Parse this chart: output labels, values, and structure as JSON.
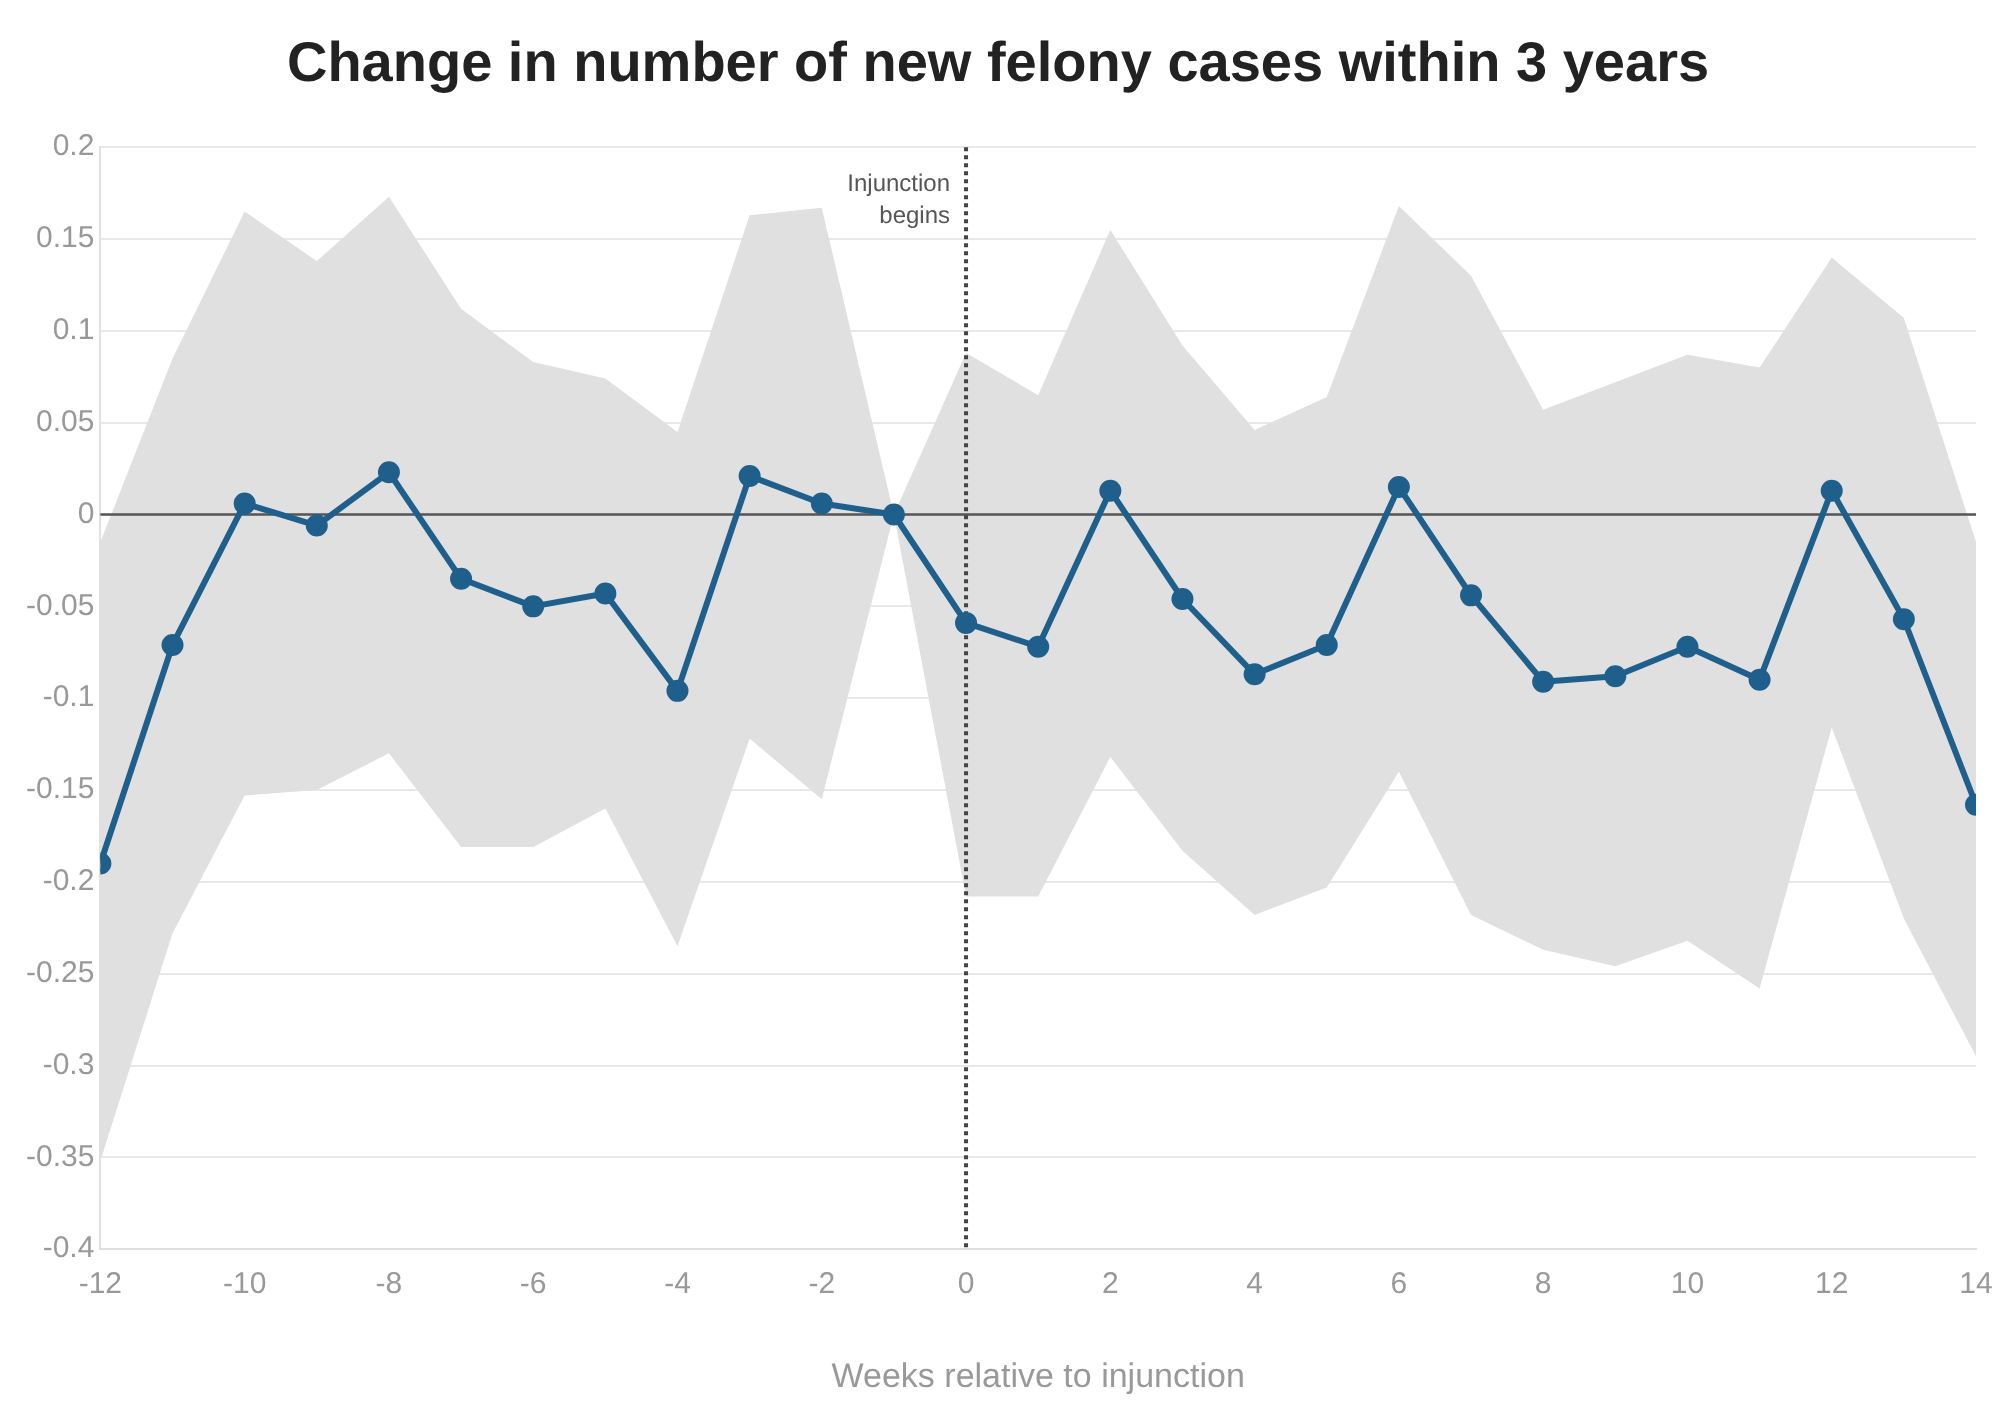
{
  "chart_data": {
    "type": "line",
    "title": "Change in number of new felony cases within 3 years",
    "xlabel": "Weeks relative to injunction",
    "x": [
      -12,
      -11,
      -10,
      -9,
      -8,
      -7,
      -6,
      -5,
      -4,
      -3,
      -2,
      -1,
      0,
      1,
      2,
      3,
      4,
      5,
      6,
      7,
      8,
      9,
      10,
      11,
      12,
      13,
      14
    ],
    "series": [
      {
        "color": "#1f5f8b",
        "values": [
          -0.19,
          -0.071,
          0.006,
          -0.006,
          0.023,
          -0.035,
          -0.05,
          -0.043,
          -0.096,
          0.021,
          0.006,
          0,
          -0.059,
          -0.072,
          0.013,
          -0.046,
          -0.087,
          -0.071,
          0.015,
          -0.044,
          -0.091,
          -0.088,
          -0.072,
          -0.09,
          0.013,
          -0.057,
          -0.158
        ],
        "lower": [
          -0.352,
          -0.228,
          -0.153,
          -0.15,
          -0.13,
          -0.181,
          -0.181,
          -0.16,
          -0.235,
          -0.122,
          -0.155,
          0,
          -0.208,
          -0.208,
          -0.132,
          -0.183,
          -0.218,
          -0.203,
          -0.14,
          -0.218,
          -0.237,
          -0.246,
          -0.232,
          -0.258,
          -0.116,
          -0.22,
          -0.295
        ],
        "upper": [
          -0.015,
          0.085,
          0.165,
          0.138,
          0.173,
          0.112,
          0.083,
          0.074,
          0.045,
          0.163,
          0.167,
          0,
          0.088,
          0.065,
          0.155,
          0.092,
          0.046,
          0.064,
          0.168,
          0.13,
          0.057,
          0.072,
          0.087,
          0.08,
          0.14,
          0.107,
          -0.015
        ]
      }
    ],
    "xlim": [
      -12,
      14
    ],
    "xticks": [
      -12,
      -10,
      -8,
      -6,
      -4,
      -2,
      0,
      2,
      4,
      6,
      8,
      10,
      12,
      14
    ],
    "ylim": [
      -0.4,
      0.2
    ],
    "yticks": [
      -0.4,
      -0.35,
      -0.3,
      -0.25,
      -0.2,
      -0.15,
      -0.1,
      -0.05,
      0,
      0.05,
      0.1,
      0.15,
      0.2
    ],
    "ref_lines": [
      {
        "axis": "y",
        "value": 0,
        "color": "#555555",
        "line_style": "solid"
      },
      {
        "axis": "x",
        "value": 0,
        "label": "Injunction\nbegins",
        "color": "#444444",
        "line_style": "dotted"
      }
    ],
    "grid": "y",
    "marker": "circle",
    "line_style": "solid",
    "legend": false
  }
}
